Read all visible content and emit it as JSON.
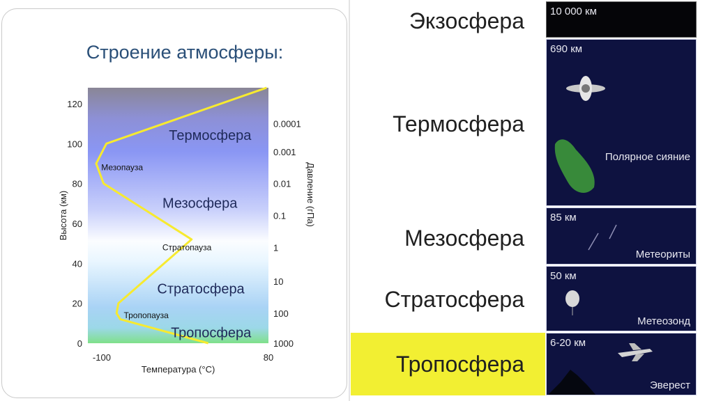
{
  "left_slide": {
    "title": "Строение атмосферы:"
  },
  "chart_data": {
    "type": "line",
    "title": "Строение атмосферы:",
    "xlabel": "Температура (°C)",
    "ylabel": "Высота (км)",
    "y2label": "Давление (гПа)",
    "xlim": [
      -115,
      80
    ],
    "ylim": [
      0,
      128
    ],
    "x_ticks": [
      "-100",
      "80"
    ],
    "y_ticks": [
      "0",
      "20",
      "40",
      "60",
      "80",
      "100",
      "120"
    ],
    "pressure_ticks": [
      {
        "label": "1000",
        "altitude": 0
      },
      {
        "label": "100",
        "altitude": 15
      },
      {
        "label": "10",
        "altitude": 31
      },
      {
        "label": "1",
        "altitude": 48
      },
      {
        "label": "0.1",
        "altitude": 64
      },
      {
        "label": "0.01",
        "altitude": 80
      },
      {
        "label": "0.001",
        "altitude": 96
      },
      {
        "label": "0.0001",
        "altitude": 110
      }
    ],
    "series": [
      {
        "color": "#f7ea2f",
        "temperature": [
          15,
          -80,
          -84,
          -82,
          -3,
          -98,
          -106,
          -95,
          78
        ],
        "altitude": [
          0,
          12,
          15,
          20,
          52,
          80,
          90,
          100,
          128
        ]
      }
    ],
    "layers": [
      {
        "label": "Тропосфера",
        "temperature": 18,
        "altitude": 5
      },
      {
        "label": "Стратосфера",
        "temperature": 7,
        "altitude": 27
      },
      {
        "label": "Мезосфера",
        "temperature": 6,
        "altitude": 70
      },
      {
        "label": "Термосфера",
        "temperature": 17,
        "altitude": 104
      }
    ],
    "annotations": [
      {
        "label": "Тропопауза",
        "temperature": -52,
        "altitude": 14
      },
      {
        "label": "Стратопауза",
        "temperature": -8,
        "altitude": 48
      },
      {
        "label": "Мезопауза",
        "temperature": -78,
        "altitude": 88
      }
    ]
  },
  "right_panel": {
    "layers": [
      {
        "name": "Экзосфера",
        "altitude": "10 000 км",
        "caption": ""
      },
      {
        "name": "Термосфера",
        "altitude": "690 км",
        "caption": "Полярное сияние"
      },
      {
        "name": "Мезосфера",
        "altitude": "85 км",
        "caption": "Метеориты"
      },
      {
        "name": "Стратосфера",
        "altitude": "50 км",
        "caption": "Метеозонд"
      },
      {
        "name": "Тропосфера",
        "altitude": "6-20 км",
        "caption": "Эверест"
      }
    ],
    "highlight_color": "#f2ef32"
  }
}
